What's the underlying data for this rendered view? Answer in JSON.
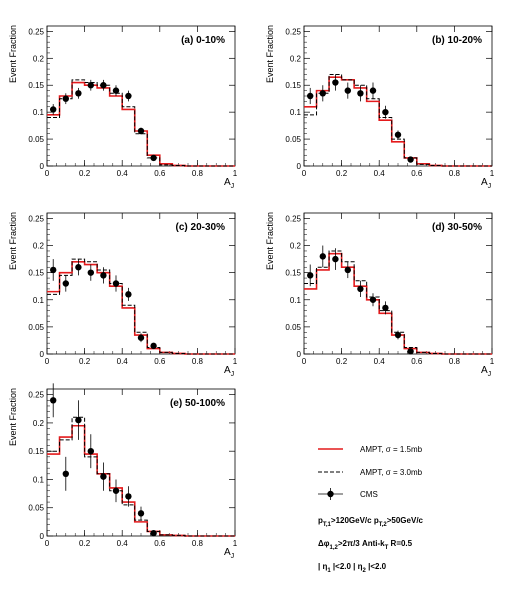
{
  "chart_data": [
    {
      "type": "line",
      "title": "(a) 0-10%",
      "ylabel": "Event Fraction",
      "xlabel": "A_J",
      "xlim": [
        0,
        1
      ],
      "ylim": [
        0,
        0.26
      ],
      "x_ticks": [
        "0",
        "0.2",
        "0.4",
        "0.6",
        "0.8",
        "1"
      ],
      "y_ticks": [
        "0",
        "0.05",
        "0.1",
        "0.15",
        "0.2",
        "0.25"
      ],
      "series": [
        {
          "name": "AMPT, σ = 1.5mb",
          "style": "histogram-solid-red",
          "bin_edges": [
            0,
            0.0667,
            0.1333,
            0.2,
            0.2667,
            0.3333,
            0.4,
            0.4667,
            0.5333,
            0.6,
            0.6667,
            0.7333,
            0.8,
            1.0
          ],
          "values": [
            0.095,
            0.13,
            0.155,
            0.15,
            0.145,
            0.13,
            0.105,
            0.065,
            0.02,
            0.004,
            0.001,
            0.0,
            0.0
          ]
        },
        {
          "name": "AMPT, σ = 3.0mb",
          "style": "histogram-dashed-black",
          "bin_edges": [
            0,
            0.0667,
            0.1333,
            0.2,
            0.2667,
            0.3333,
            0.4,
            0.4667,
            0.5333,
            0.6,
            0.6667,
            0.7333,
            0.8,
            1.0
          ],
          "values": [
            0.09,
            0.125,
            0.16,
            0.155,
            0.15,
            0.135,
            0.11,
            0.06,
            0.015,
            0.002,
            0.001,
            0.0,
            0.0
          ]
        },
        {
          "name": "CMS",
          "style": "points-errorbars",
          "x": [
            0.033,
            0.1,
            0.167,
            0.233,
            0.3,
            0.367,
            0.433,
            0.5,
            0.567
          ],
          "y": [
            0.105,
            0.125,
            0.135,
            0.15,
            0.15,
            0.14,
            0.13,
            0.065,
            0.015
          ],
          "err": [
            0.01,
            0.01,
            0.01,
            0.01,
            0.01,
            0.01,
            0.01,
            0.006,
            0.004
          ]
        }
      ]
    },
    {
      "type": "line",
      "title": "(b) 10-20%",
      "ylabel": "Event Fraction",
      "xlabel": "A_J",
      "xlim": [
        0,
        1
      ],
      "ylim": [
        0,
        0.26
      ],
      "x_ticks": [
        "0",
        "0.2",
        "0.4",
        "0.6",
        "0.8",
        "1"
      ],
      "y_ticks": [
        "0",
        "0.05",
        "0.1",
        "0.15",
        "0.2",
        "0.25"
      ],
      "series": [
        {
          "name": "AMPT, σ = 1.5mb",
          "style": "histogram-solid-red",
          "bin_edges": [
            0,
            0.0667,
            0.1333,
            0.2,
            0.2667,
            0.3333,
            0.4,
            0.4667,
            0.5333,
            0.6,
            0.6667,
            0.7333,
            0.8,
            1.0
          ],
          "values": [
            0.11,
            0.14,
            0.165,
            0.16,
            0.145,
            0.12,
            0.085,
            0.045,
            0.015,
            0.004,
            0.001,
            0.0,
            0.0
          ]
        },
        {
          "name": "AMPT, σ = 3.0mb",
          "style": "histogram-dashed-black",
          "bin_edges": [
            0,
            0.0667,
            0.1333,
            0.2,
            0.2667,
            0.3333,
            0.4,
            0.4667,
            0.5333,
            0.6,
            0.6667,
            0.7333,
            0.8,
            1.0
          ],
          "values": [
            0.095,
            0.135,
            0.17,
            0.16,
            0.15,
            0.125,
            0.09,
            0.05,
            0.015,
            0.003,
            0.001,
            0.0,
            0.0
          ]
        },
        {
          "name": "CMS",
          "style": "points-errorbars",
          "x": [
            0.033,
            0.1,
            0.167,
            0.233,
            0.3,
            0.367,
            0.433,
            0.5,
            0.567
          ],
          "y": [
            0.13,
            0.135,
            0.155,
            0.14,
            0.135,
            0.14,
            0.1,
            0.058,
            0.012
          ],
          "err": [
            0.015,
            0.015,
            0.015,
            0.015,
            0.015,
            0.015,
            0.012,
            0.008,
            0.004
          ]
        }
      ]
    },
    {
      "type": "line",
      "title": "(c) 20-30%",
      "ylabel": "Event Fraction",
      "xlabel": "A_J",
      "xlim": [
        0,
        1
      ],
      "ylim": [
        0,
        0.26
      ],
      "x_ticks": [
        "0",
        "0.2",
        "0.4",
        "0.6",
        "0.8",
        "1"
      ],
      "y_ticks": [
        "0",
        "0.05",
        "0.1",
        "0.15",
        "0.2",
        "0.25"
      ],
      "series": [
        {
          "name": "AMPT, σ = 1.5mb",
          "style": "histogram-solid-red",
          "bin_edges": [
            0,
            0.0667,
            0.1333,
            0.2,
            0.2667,
            0.3333,
            0.4,
            0.4667,
            0.5333,
            0.6,
            0.6667,
            0.7333,
            0.8,
            1.0
          ],
          "values": [
            0.115,
            0.15,
            0.17,
            0.165,
            0.15,
            0.125,
            0.085,
            0.035,
            0.01,
            0.003,
            0.001,
            0.0,
            0.0
          ]
        },
        {
          "name": "AMPT, σ = 3.0mb",
          "style": "histogram-dashed-black",
          "bin_edges": [
            0,
            0.0667,
            0.1333,
            0.2,
            0.2667,
            0.3333,
            0.4,
            0.4667,
            0.5333,
            0.6,
            0.6667,
            0.7333,
            0.8,
            1.0
          ],
          "values": [
            0.11,
            0.145,
            0.175,
            0.17,
            0.155,
            0.13,
            0.09,
            0.04,
            0.012,
            0.003,
            0.001,
            0.0,
            0.0
          ]
        },
        {
          "name": "CMS",
          "style": "points-errorbars",
          "x": [
            0.033,
            0.1,
            0.167,
            0.233,
            0.3,
            0.367,
            0.433,
            0.5,
            0.567
          ],
          "y": [
            0.155,
            0.13,
            0.16,
            0.15,
            0.145,
            0.13,
            0.11,
            0.03,
            0.015
          ],
          "err": [
            0.02,
            0.015,
            0.015,
            0.015,
            0.015,
            0.015,
            0.012,
            0.008,
            0.004
          ]
        }
      ]
    },
    {
      "type": "line",
      "title": "(d) 30-50%",
      "ylabel": "Event Fraction",
      "xlabel": "A_J",
      "xlim": [
        0,
        1
      ],
      "ylim": [
        0,
        0.26
      ],
      "x_ticks": [
        "0",
        "0.2",
        "0.4",
        "0.6",
        "0.8",
        "1"
      ],
      "y_ticks": [
        "0",
        "0.05",
        "0.1",
        "0.15",
        "0.2",
        "0.25"
      ],
      "series": [
        {
          "name": "AMPT, σ = 1.5mb",
          "style": "histogram-solid-red",
          "bin_edges": [
            0,
            0.0667,
            0.1333,
            0.2,
            0.2667,
            0.3333,
            0.4,
            0.4667,
            0.5333,
            0.6,
            0.6667,
            0.7333,
            0.8,
            1.0
          ],
          "values": [
            0.12,
            0.155,
            0.185,
            0.16,
            0.125,
            0.1,
            0.075,
            0.035,
            0.01,
            0.003,
            0.001,
            0.0,
            0.0
          ]
        },
        {
          "name": "AMPT, σ = 3.0mb",
          "style": "histogram-dashed-black",
          "bin_edges": [
            0,
            0.0667,
            0.1333,
            0.2,
            0.2667,
            0.3333,
            0.4,
            0.4667,
            0.5333,
            0.6,
            0.6667,
            0.7333,
            0.8,
            1.0
          ],
          "values": [
            0.13,
            0.16,
            0.19,
            0.17,
            0.135,
            0.105,
            0.08,
            0.04,
            0.012,
            0.003,
            0.001,
            0.0,
            0.0
          ]
        },
        {
          "name": "CMS",
          "style": "points-errorbars",
          "x": [
            0.033,
            0.1,
            0.167,
            0.233,
            0.3,
            0.367,
            0.433,
            0.5,
            0.567
          ],
          "y": [
            0.145,
            0.18,
            0.175,
            0.155,
            0.12,
            0.1,
            0.085,
            0.035,
            0.005
          ],
          "err": [
            0.02,
            0.02,
            0.02,
            0.015,
            0.015,
            0.012,
            0.012,
            0.008,
            0.003
          ]
        }
      ]
    },
    {
      "type": "line",
      "title": "(e) 50-100%",
      "ylabel": "Event Fraction",
      "xlabel": "A_J",
      "xlim": [
        0,
        1
      ],
      "ylim": [
        0,
        0.26
      ],
      "x_ticks": [
        "0",
        "0.2",
        "0.4",
        "0.6",
        "0.8",
        "1"
      ],
      "y_ticks": [
        "0",
        "0.05",
        "0.1",
        "0.15",
        "0.2",
        "0.25"
      ],
      "series": [
        {
          "name": "AMPT, σ = 1.5mb",
          "style": "histogram-solid-red",
          "bin_edges": [
            0,
            0.0667,
            0.1333,
            0.2,
            0.2667,
            0.3333,
            0.4,
            0.4667,
            0.5333,
            0.6,
            0.6667,
            0.7333,
            0.8,
            1.0
          ],
          "values": [
            0.145,
            0.175,
            0.195,
            0.145,
            0.11,
            0.085,
            0.06,
            0.025,
            0.008,
            0.002,
            0.001,
            0.0,
            0.0
          ]
        },
        {
          "name": "AMPT, σ = 3.0mb",
          "style": "histogram-dashed-black",
          "bin_edges": [
            0,
            0.0667,
            0.1333,
            0.2,
            0.2667,
            0.3333,
            0.4,
            0.4667,
            0.5333,
            0.6,
            0.6667,
            0.7333,
            0.8,
            1.0
          ],
          "values": [
            0.15,
            0.17,
            0.21,
            0.14,
            0.11,
            0.08,
            0.055,
            0.028,
            0.008,
            0.002,
            0.001,
            0.0,
            0.0
          ]
        },
        {
          "name": "CMS",
          "style": "points-errorbars",
          "x": [
            0.033,
            0.1,
            0.167,
            0.233,
            0.3,
            0.367,
            0.433,
            0.5,
            0.567
          ],
          "y": [
            0.24,
            0.11,
            0.205,
            0.15,
            0.105,
            0.08,
            0.07,
            0.04,
            0.005
          ],
          "err": [
            0.03,
            0.03,
            0.035,
            0.03,
            0.025,
            0.02,
            0.018,
            0.012,
            0.003
          ]
        }
      ]
    }
  ],
  "legend": {
    "entries": [
      "AMPT, σ = 1.5mb",
      "AMPT, σ = 3.0mb",
      "CMS"
    ],
    "colors": {
      "amp15": "#e41a1c",
      "amp30": "#000000",
      "cms": "#000000"
    },
    "cut_lines": [
      "p_T,1>120GeV/c   p_T,2>50GeV/c",
      "Δφ_1,2>2π/3   Anti-k_T  R=0.5",
      "| η_1 |<2.0   | η_2 |<2.0"
    ]
  }
}
